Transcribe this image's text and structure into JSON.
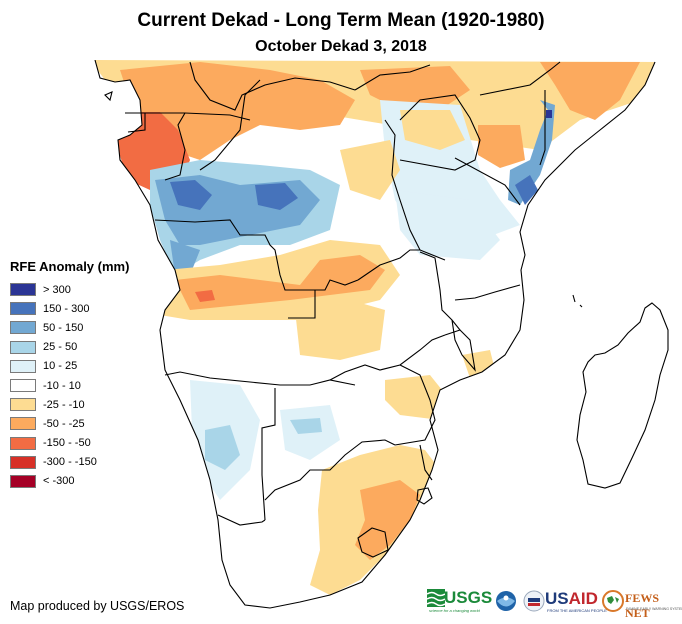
{
  "title": "Current Dekad - Long Term Mean (1920-1980)",
  "subtitle": "October Dekad 3, 2018",
  "legend": {
    "title": "RFE Anomaly (mm)",
    "items": [
      {
        "label": "> 300",
        "color": "#2b3595"
      },
      {
        "label": "150 - 300",
        "color": "#4673bb"
      },
      {
        "label": "50 - 150",
        "color": "#72a8d2"
      },
      {
        "label": "25 - 50",
        "color": "#a9d5e8"
      },
      {
        "label": "10 - 25",
        "color": "#dff1f8"
      },
      {
        "label": "-10 - 10",
        "color": "#ffffff"
      },
      {
        "label": "-25 - -10",
        "color": "#fddc92"
      },
      {
        "label": "-50 - -25",
        "color": "#fcaa5e"
      },
      {
        "label": "-150 - -50",
        "color": "#f26c43"
      },
      {
        "label": "-300 - -150",
        "color": "#d73027"
      },
      {
        "label": "< -300",
        "color": "#a50026"
      }
    ]
  },
  "credit": "Map produced by USGS/EROS",
  "logos": {
    "usgs": {
      "name": "USGS",
      "tagline": "science for a changing world"
    },
    "noaa": {
      "name": "NOAA"
    },
    "usaid": {
      "name_a": "US",
      "name_b": "AID",
      "tagline": "FROM THE AMERICAN PEOPLE"
    },
    "fews": {
      "name": "FEWS NET",
      "tagline": "FAMINE EARLY WARNING SYSTEMS NETWORK"
    }
  },
  "map": {
    "region": "Central and Southern Africa",
    "anomaly_patterns": [
      {
        "area": "Gabon / Equatorial Guinea coast",
        "class": "-150 - -50"
      },
      {
        "area": "Northern Congo / CAR / South Sudan",
        "class": "-50 - -25"
      },
      {
        "area": "Southern Congo / DRC west / northern Angola",
        "class": "150 - 300"
      },
      {
        "area": "Central Angola / Zambia west",
        "class": "-50 - -25"
      },
      {
        "area": "Western Zambia",
        "class": "-25 - -10"
      },
      {
        "area": "Eastern South Africa / Lesotho",
        "class": "-50 - -25"
      },
      {
        "area": "South Africa interior",
        "class": "-25 - -10"
      },
      {
        "area": "Namibia",
        "class": "25 - 50"
      },
      {
        "area": "Kenya / Somalia coast",
        "class": "150 - 300"
      },
      {
        "area": "Somalia / Ethiopia",
        "class": "-50 - -25"
      },
      {
        "area": "Madagascar",
        "class": "10 - 25"
      }
    ]
  }
}
